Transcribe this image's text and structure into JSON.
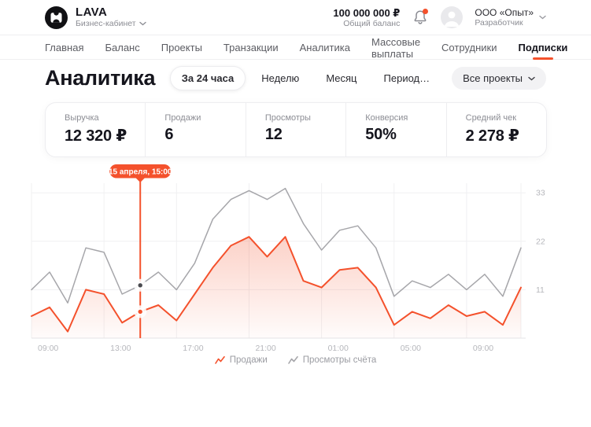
{
  "header": {
    "brand": {
      "name": "LAVA",
      "subtitle": "Бизнес-кабинет"
    },
    "balance": {
      "amount": "100 000 000 ₽",
      "label": "Общий баланс"
    },
    "profile": {
      "company": "ООО «Опыт»",
      "role": "Разработчик"
    }
  },
  "nav": {
    "items": [
      "Главная",
      "Баланс",
      "Проекты",
      "Транзакции",
      "Аналитика",
      "Массовые выплаты",
      "Сотрудники",
      "Подписки"
    ],
    "active": "Подписки"
  },
  "page": {
    "title": "Аналитика",
    "filters": {
      "periods": [
        "За 24 часа",
        "Неделю",
        "Месяц",
        "Период…"
      ],
      "active_period": "За 24 часа",
      "project_selector": "Все проекты"
    }
  },
  "stats": [
    {
      "label": "Выручка",
      "value": "12 320 ₽"
    },
    {
      "label": "Продажи",
      "value": "6"
    },
    {
      "label": "Просмотры",
      "value": "12"
    },
    {
      "label": "Конверсия",
      "value": "50%"
    },
    {
      "label": "Средний чек",
      "value": "2 278 ₽"
    }
  ],
  "chart_data": {
    "type": "line",
    "x_tick_labels": [
      "09:00",
      "13:00",
      "17:00",
      "21:00",
      "01:00",
      "05:00",
      "09:00"
    ],
    "x_tick_indices": [
      0,
      4,
      8,
      12,
      16,
      20,
      24
    ],
    "y_ticks": [
      11,
      22,
      33
    ],
    "ylim": [
      0,
      36
    ],
    "grid": true,
    "legend_position": "bottom",
    "series": [
      {
        "name": "Продажи",
        "color": "#f4512c",
        "marker_color": "#f4512c",
        "fill": true,
        "values": [
          5,
          7,
          1.5,
          11,
          10,
          3.5,
          6,
          7.5,
          4,
          10,
          16,
          21,
          23,
          18.5,
          23,
          13,
          11.5,
          15.5,
          16,
          11.5,
          3,
          6,
          4.5,
          7.5,
          5,
          6,
          3,
          11.5
        ]
      },
      {
        "name": "Просмотры счёта",
        "color": "#a6a6aa",
        "marker_color": "#4a4b50",
        "fill": false,
        "values": [
          11,
          15,
          8,
          20.5,
          19.5,
          10,
          12,
          15,
          11,
          17,
          27,
          31.5,
          33.5,
          31.5,
          34,
          26,
          20,
          24.5,
          25.5,
          20.5,
          9.5,
          13,
          11.5,
          14.5,
          11,
          14.5,
          9.5,
          20.5
        ]
      }
    ],
    "tooltip": {
      "label": "15 апреля, 15:00",
      "index": 6,
      "values": {
        "Продажи": 6,
        "Просмотры счёта": 12
      }
    }
  },
  "colors": {
    "accent": "#f4512c",
    "grid": "#f0f0f2",
    "axis": "#e4e4e7",
    "tick_text": "#b6b7bc"
  }
}
